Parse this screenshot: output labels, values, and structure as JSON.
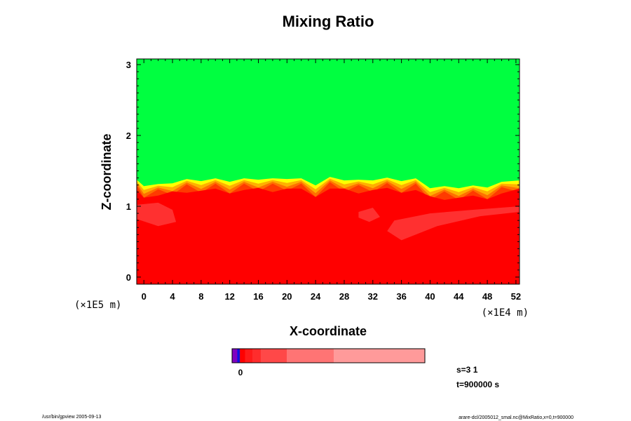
{
  "chart_data": {
    "type": "heatmap",
    "title": "Mixing Ratio",
    "xlabel": "X-coordinate",
    "ylabel": "Z-coordinate",
    "x_scale_label": "(×1E4 m)",
    "y_scale_label": "(×1E5 m)",
    "xlim": [
      -1,
      52.5
    ],
    "ylim": [
      -0.1,
      3.08
    ],
    "x_ticks": [
      "0",
      "4",
      "8",
      "12",
      "16",
      "20",
      "24",
      "28",
      "32",
      "36",
      "40",
      "44",
      "48",
      "52"
    ],
    "y_ticks": [
      "0",
      "1",
      "2",
      "3"
    ],
    "x_tick_values": [
      0,
      4,
      8,
      12,
      16,
      20,
      24,
      28,
      32,
      36,
      40,
      44,
      48,
      52
    ],
    "y_tick_values": [
      0,
      1,
      2,
      3
    ],
    "regions": {
      "upper_color": "#00ff40",
      "lower_color": "#ff0000",
      "lower_patch_color": "#ff3838",
      "transition_colors": [
        "#ffff00",
        "#ffb000",
        "#ff7000",
        "#ff3a00"
      ],
      "interface_profile_x": [
        -1,
        0,
        2,
        4,
        6,
        8,
        10,
        12,
        14,
        16,
        18,
        20,
        22,
        24,
        26,
        28,
        30,
        32,
        34,
        36,
        38,
        40,
        42,
        44,
        46,
        48,
        50,
        52.5
      ],
      "interface_profile_z": [
        1.36,
        1.3,
        1.3,
        1.34,
        1.37,
        1.37,
        1.38,
        1.36,
        1.38,
        1.39,
        1.38,
        1.4,
        1.38,
        1.31,
        1.4,
        1.38,
        1.36,
        1.38,
        1.39,
        1.37,
        1.38,
        1.27,
        1.27,
        1.27,
        1.28,
        1.28,
        1.33,
        1.38
      ]
    },
    "colorbar": {
      "tick_label": "0",
      "segments": [
        {
          "color": "#8000c0",
          "weight": 1
        },
        {
          "color": "#1010e0",
          "weight": 0.5
        },
        {
          "color": "#ff0000",
          "weight": 1
        },
        {
          "color": "#ff1a1a",
          "weight": 1.4
        },
        {
          "color": "#ff2c2c",
          "weight": 1.6
        },
        {
          "color": "#ff4848",
          "weight": 5
        },
        {
          "color": "#ff7474",
          "weight": 9
        },
        {
          "color": "#ff9a9a",
          "weight": 17.5
        }
      ]
    },
    "info": {
      "line1": "s=3 1",
      "line2": "t=900000 s"
    },
    "footer_left": "/usr/bin/gpview 2005-09-13",
    "footer_right": "arare-dcl/2005012_smal.nc@MixRatio,x=0,t=900000"
  }
}
